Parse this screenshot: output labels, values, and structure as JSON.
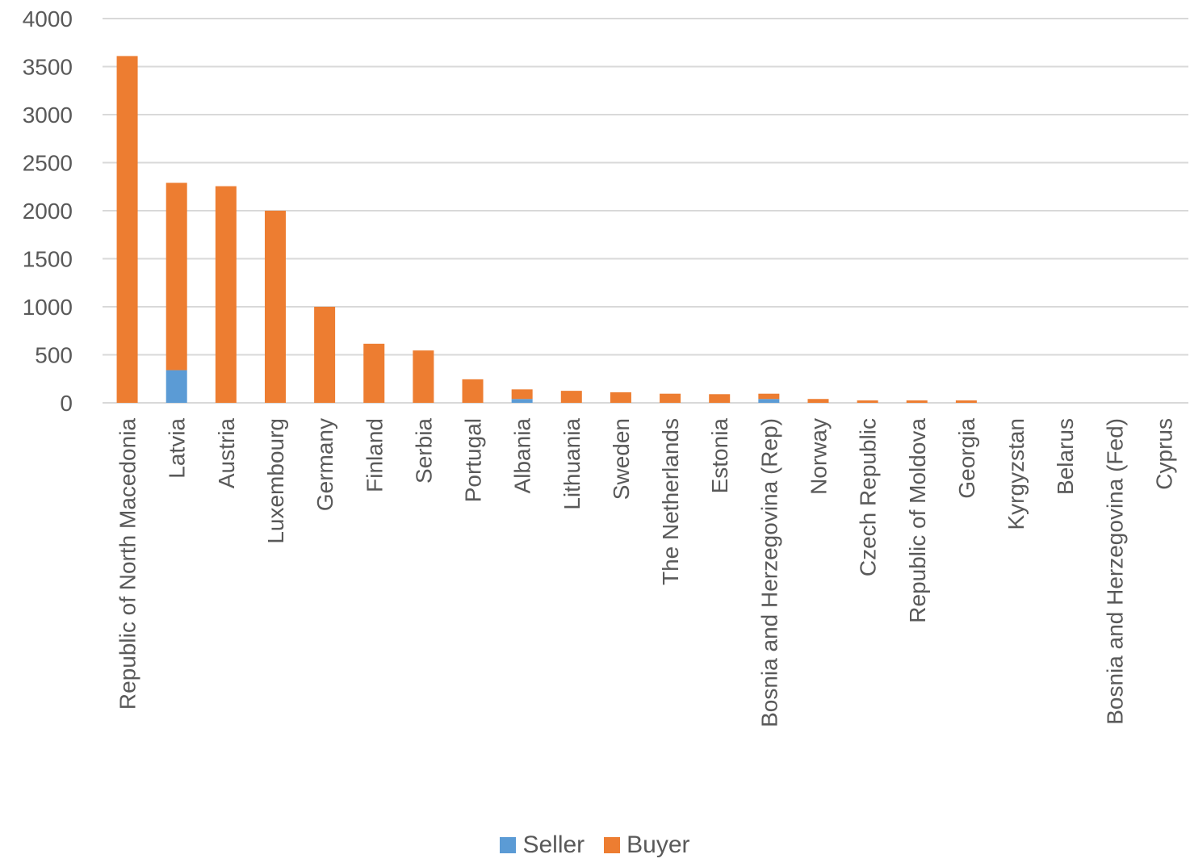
{
  "chart_data": {
    "type": "bar",
    "stacked": true,
    "categories": [
      "Republic of North Macedonia",
      "Latvia",
      "Austria",
      "Luxembourg",
      "Germany",
      "Finland",
      "Serbia",
      "Portugal",
      "Albania",
      "Lithuania",
      "Sweden",
      "The Netherlands",
      "Estonia",
      "Bosnia and Herzegovina (Rep)",
      "Norway",
      "Czech Republic",
      "Republic of Moldova",
      "Georgia",
      "Kyrgyzstan",
      "Belarus",
      "Bosnia and Herzegovina (Fed)",
      "Cyprus"
    ],
    "series": [
      {
        "name": "Seller",
        "color": "#5B9BD5",
        "values": [
          0,
          340,
          0,
          0,
          0,
          0,
          0,
          0,
          40,
          0,
          0,
          0,
          0,
          40,
          0,
          0,
          0,
          0,
          0,
          0,
          0,
          0
        ]
      },
      {
        "name": "Buyer",
        "color": "#ED7D31",
        "values": [
          3610,
          1950,
          2255,
          2000,
          1000,
          615,
          545,
          245,
          100,
          125,
          110,
          95,
          90,
          55,
          40,
          25,
          25,
          25,
          0,
          0,
          0,
          0
        ]
      }
    ],
    "ylim": [
      0,
      4000
    ],
    "yticks": [
      0,
      500,
      1000,
      1500,
      2000,
      2500,
      3000,
      3500,
      4000
    ],
    "grid": true,
    "legend_position": "bottom"
  }
}
